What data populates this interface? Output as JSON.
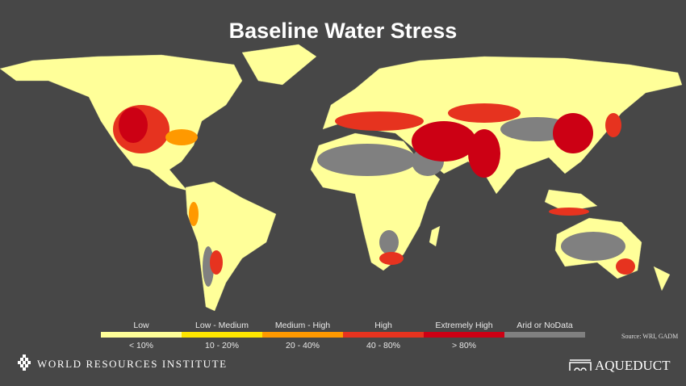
{
  "header": {
    "title": "Baseline Water Stress"
  },
  "legend": {
    "items": [
      {
        "label": "Low",
        "range": "< 10%",
        "color": "#ffff99"
      },
      {
        "label": "Low - Medium",
        "range": "10 - 20%",
        "color": "#ffe600"
      },
      {
        "label": "Medium - High",
        "range": "20 - 40%",
        "color": "#ff9900"
      },
      {
        "label": "High",
        "range": "40 - 80%",
        "color": "#e6331f"
      },
      {
        "label": "Extremely High",
        "range": "> 80%",
        "color": "#cc0014"
      },
      {
        "label": "Arid or NoData",
        "color": "#808080"
      }
    ]
  },
  "source": "Source: WRI, GADM",
  "footer": {
    "left": "WORLD RESOURCES INSTITUTE",
    "right": "AQUEDUCT"
  }
}
